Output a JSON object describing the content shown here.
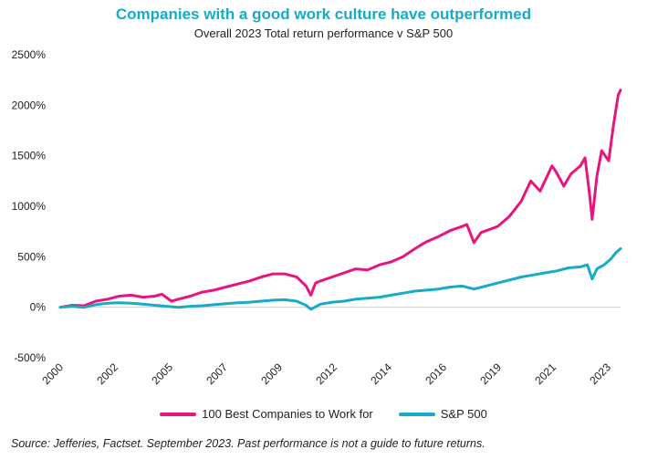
{
  "title": "Companies with a good work culture have outperformed",
  "subtitle": "Overall 2023  Total return performance v S&P 500",
  "source": "Source: Jefferies, Factset. September 2023. Past performance is not a guide to future returns.",
  "colors": {
    "title": "#17aac9",
    "best": "#e6167e",
    "sp500": "#17aac9"
  },
  "chart_data": {
    "type": "line",
    "title": "Companies with a good work culture have outperformed",
    "subtitle": "Overall 2023  Total return performance v S&P 500",
    "ylim": [
      -500,
      2500
    ],
    "xlim": [
      2000,
      2023.7
    ],
    "y_ticks": [
      2500,
      2000,
      1500,
      1000,
      500,
      0,
      -500
    ],
    "y_tick_labels": [
      "2500%",
      "2000%",
      "1500%",
      "1000%",
      "500%",
      "0%",
      "-500%"
    ],
    "x_tick_labels": [
      "2000",
      "2002",
      "2005",
      "2007",
      "2009",
      "2012",
      "2014",
      "2016",
      "2019",
      "2021",
      "2023"
    ],
    "legend_position": "bottom",
    "grid": false,
    "series": [
      {
        "name": "100 Best Companies to Work for",
        "color": "#e6167e",
        "points": [
          [
            2000.0,
            0
          ],
          [
            2000.5,
            20
          ],
          [
            2001.0,
            15
          ],
          [
            2001.5,
            60
          ],
          [
            2002.0,
            80
          ],
          [
            2002.5,
            110
          ],
          [
            2003.0,
            120
          ],
          [
            2003.5,
            100
          ],
          [
            2004.0,
            110
          ],
          [
            2004.3,
            130
          ],
          [
            2004.7,
            60
          ],
          [
            2005.0,
            80
          ],
          [
            2005.5,
            110
          ],
          [
            2006.0,
            150
          ],
          [
            2006.5,
            170
          ],
          [
            2007.0,
            200
          ],
          [
            2007.5,
            230
          ],
          [
            2008.0,
            260
          ],
          [
            2008.5,
            300
          ],
          [
            2009.0,
            330
          ],
          [
            2009.5,
            330
          ],
          [
            2010.0,
            300
          ],
          [
            2010.4,
            210
          ],
          [
            2010.6,
            120
          ],
          [
            2010.8,
            240
          ],
          [
            2011.0,
            260
          ],
          [
            2011.5,
            300
          ],
          [
            2012.0,
            340
          ],
          [
            2012.5,
            380
          ],
          [
            2013.0,
            370
          ],
          [
            2013.5,
            420
          ],
          [
            2014.0,
            450
          ],
          [
            2014.5,
            500
          ],
          [
            2015.0,
            580
          ],
          [
            2015.5,
            650
          ],
          [
            2016.0,
            700
          ],
          [
            2016.5,
            760
          ],
          [
            2017.0,
            800
          ],
          [
            2017.2,
            820
          ],
          [
            2017.5,
            640
          ],
          [
            2017.8,
            740
          ],
          [
            2018.5,
            800
          ],
          [
            2019.0,
            900
          ],
          [
            2019.5,
            1050
          ],
          [
            2019.9,
            1250
          ],
          [
            2020.3,
            1150
          ],
          [
            2020.8,
            1400
          ],
          [
            2021.0,
            1330
          ],
          [
            2021.3,
            1200
          ],
          [
            2021.6,
            1320
          ],
          [
            2022.0,
            1400
          ],
          [
            2022.2,
            1480
          ],
          [
            2022.4,
            1100
          ],
          [
            2022.5,
            870
          ],
          [
            2022.7,
            1300
          ],
          [
            2022.9,
            1550
          ],
          [
            2023.2,
            1450
          ],
          [
            2023.4,
            1800
          ],
          [
            2023.6,
            2100
          ],
          [
            2023.7,
            2150
          ]
        ]
      },
      {
        "name": "S&P 500",
        "color": "#17aac9",
        "points": [
          [
            2000.0,
            0
          ],
          [
            2000.5,
            10
          ],
          [
            2001.0,
            0
          ],
          [
            2001.5,
            25
          ],
          [
            2002.0,
            40
          ],
          [
            2002.5,
            45
          ],
          [
            2003.0,
            40
          ],
          [
            2003.5,
            30
          ],
          [
            2004.0,
            20
          ],
          [
            2004.5,
            10
          ],
          [
            2005.0,
            0
          ],
          [
            2005.5,
            10
          ],
          [
            2006.0,
            15
          ],
          [
            2006.5,
            25
          ],
          [
            2007.0,
            35
          ],
          [
            2007.5,
            45
          ],
          [
            2008.0,
            50
          ],
          [
            2008.5,
            60
          ],
          [
            2009.0,
            70
          ],
          [
            2009.5,
            75
          ],
          [
            2010.0,
            60
          ],
          [
            2010.4,
            20
          ],
          [
            2010.6,
            -20
          ],
          [
            2011.0,
            30
          ],
          [
            2011.5,
            50
          ],
          [
            2012.0,
            60
          ],
          [
            2012.5,
            80
          ],
          [
            2013.0,
            90
          ],
          [
            2013.5,
            100
          ],
          [
            2014.0,
            120
          ],
          [
            2014.5,
            140
          ],
          [
            2015.0,
            160
          ],
          [
            2015.5,
            170
          ],
          [
            2016.0,
            180
          ],
          [
            2016.5,
            200
          ],
          [
            2017.0,
            210
          ],
          [
            2017.5,
            180
          ],
          [
            2018.0,
            210
          ],
          [
            2018.5,
            240
          ],
          [
            2019.0,
            270
          ],
          [
            2019.5,
            300
          ],
          [
            2020.0,
            320
          ],
          [
            2020.5,
            340
          ],
          [
            2021.0,
            360
          ],
          [
            2021.5,
            390
          ],
          [
            2022.0,
            400
          ],
          [
            2022.3,
            420
          ],
          [
            2022.5,
            280
          ],
          [
            2022.7,
            380
          ],
          [
            2023.0,
            420
          ],
          [
            2023.3,
            480
          ],
          [
            2023.5,
            540
          ],
          [
            2023.7,
            580
          ]
        ]
      }
    ]
  }
}
